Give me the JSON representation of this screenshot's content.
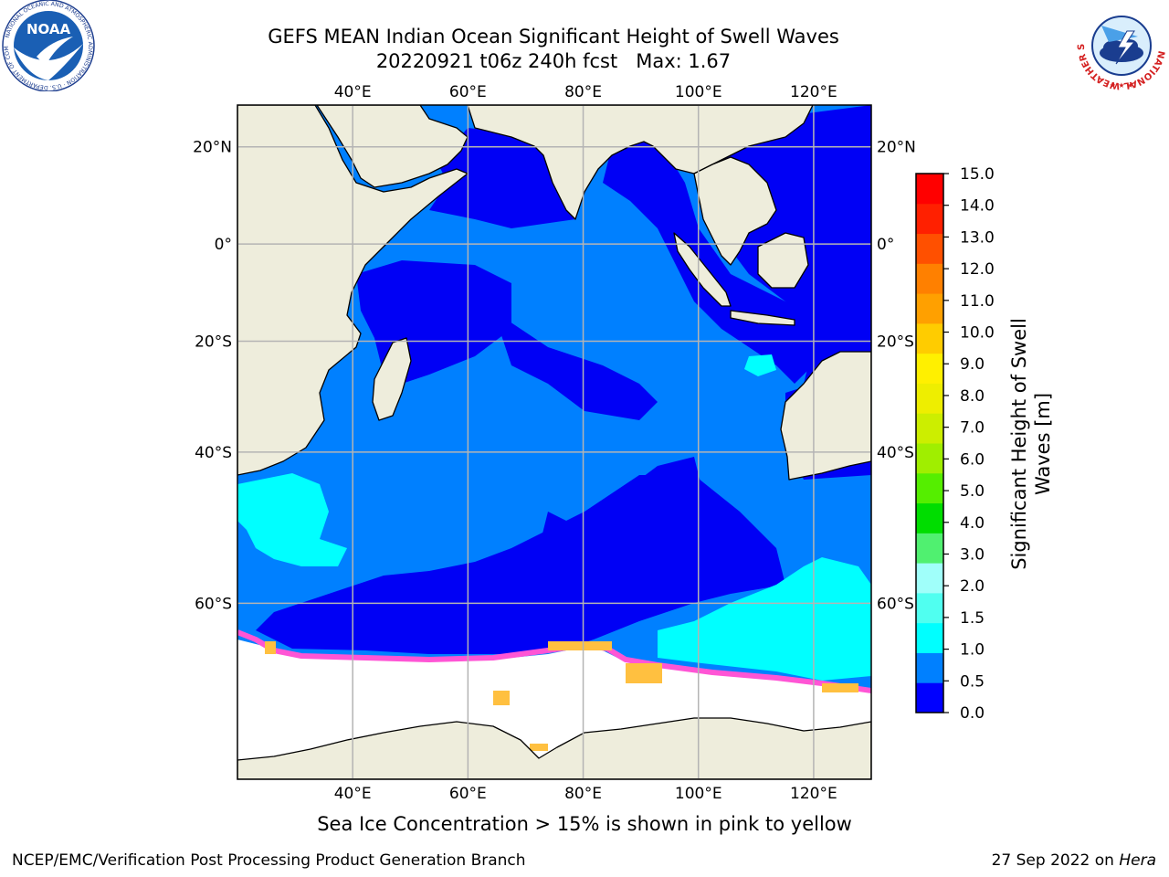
{
  "title": {
    "line1": "GEFS MEAN Indian Ocean Significant Height of Swell Waves",
    "line2": "20220921 t06z 240h fcst   Max: 1.67"
  },
  "map": {
    "lon_range": [
      20,
      130
    ],
    "lat_range": [
      -74,
      28
    ],
    "lon_ticks_top": [
      "40°E",
      "60°E",
      "80°E",
      "100°E",
      "120°E"
    ],
    "lon_ticks_bottom": [
      "40°E",
      "60°E",
      "80°E",
      "100°E",
      "120°E"
    ],
    "lat_ticks_left": [
      "20°N",
      "0°",
      "20°S",
      "40°S",
      "60°S"
    ],
    "lat_ticks_right": [
      "20°N",
      "0°",
      "20°S",
      "40°S",
      "60°S"
    ],
    "gridlines": true,
    "colors": {
      "land": "#EEEDDC",
      "ocean_05_10": "#0080FF",
      "ocean_00_05": "#0000F5",
      "ocean_10_15": "#00FFFF",
      "sea_ice": "#FFFFFF",
      "ice_pink": "#FF55D5",
      "ice_yellow": "#FFC040",
      "grid": "#B4B4B4"
    }
  },
  "colorbar": {
    "tick_labels": [
      "0.0",
      "0.5",
      "1.0",
      "1.5",
      "2.0",
      "3.0",
      "4.0",
      "5.0",
      "6.0",
      "7.0",
      "8.0",
      "9.0",
      "10.0",
      "11.0",
      "12.0",
      "13.0",
      "14.0",
      "15.0"
    ],
    "colors": [
      "#0000FF",
      "#0080FF",
      "#00FFFF",
      "#50FFF0",
      "#A0FFFA",
      "#50F070",
      "#00DD00",
      "#55EE00",
      "#A0EE00",
      "#CCEE00",
      "#EEEE00",
      "#FFF000",
      "#FFCC00",
      "#FFA000",
      "#FF8000",
      "#FF5000",
      "#FF2000",
      "#FF0000"
    ],
    "label_line1": "Significant Height of Swell",
    "label_line2": "Waves [m]"
  },
  "caption": "Sea Ice Concentration > 15% is shown in pink to yellow",
  "footer": {
    "credit": "NCEP/EMC/Verification Post Processing Product Generation Branch",
    "date": "27 Sep 2022 on",
    "machine": "Hera"
  },
  "logos": {
    "noaa": "NOAA",
    "noaa_ring": "NATIONAL OCEANIC AND ATMOSPHERIC ADMINISTRATION · U.S. DEPARTMENT OF COMMERCE",
    "nws_ring": "NATIONAL WEATHER SERVICE"
  }
}
